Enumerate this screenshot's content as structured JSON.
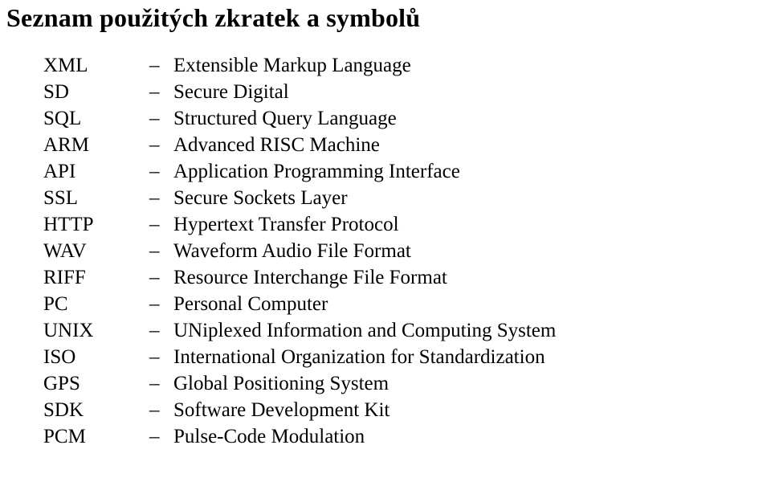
{
  "title": "Seznam použitých zkratek a symbolů",
  "title_fontsize": 32,
  "body_fontsize": 25,
  "text_color": "#000000",
  "background_color": "#ffffff",
  "col_widths": {
    "abbr": 178,
    "dash": 30
  },
  "rows": [
    {
      "abbr": "XML",
      "def": "Extensible Markup Language"
    },
    {
      "abbr": "SD",
      "def": "Secure Digital"
    },
    {
      "abbr": "SQL",
      "def": "Structured Query Language"
    },
    {
      "abbr": "ARM",
      "def": "Advanced RISC Machine"
    },
    {
      "abbr": "API",
      "def": "Application Programming Interface"
    },
    {
      "abbr": "SSL",
      "def": "Secure Sockets Layer"
    },
    {
      "abbr": "HTTP",
      "def": "Hypertext Transfer Protocol"
    },
    {
      "abbr": "WAV",
      "def": "Waveform Audio File Format"
    },
    {
      "abbr": "RIFF",
      "def": "Resource Interchange File Format"
    },
    {
      "abbr": "PC",
      "def": "Personal Computer"
    },
    {
      "abbr": "UNIX",
      "def": "UNiplexed Information and Computing System"
    },
    {
      "abbr": "ISO",
      "def": "International Organization for Standardization"
    },
    {
      "abbr": "GPS",
      "def": "Global Positioning System"
    },
    {
      "abbr": "SDK",
      "def": "Software Development Kit"
    },
    {
      "abbr": "PCM",
      "def": "Pulse-Code Modulation"
    }
  ],
  "dash": "–"
}
